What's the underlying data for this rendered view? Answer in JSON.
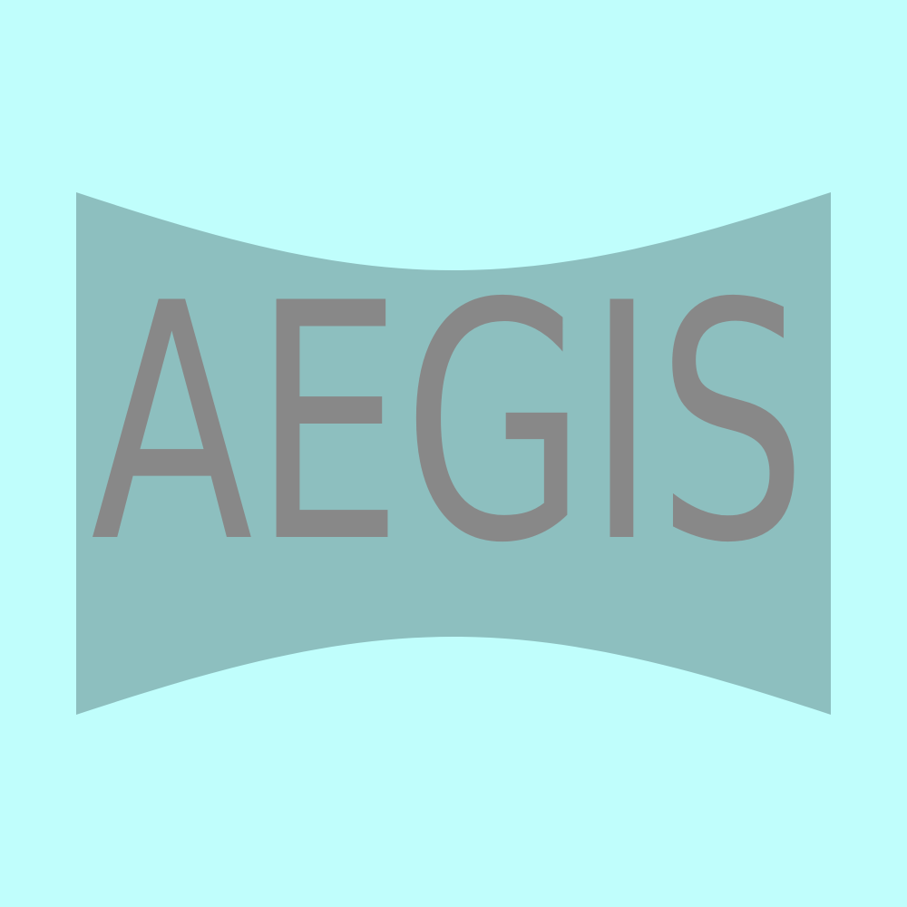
{
  "logo": {
    "text": "AEGIS"
  }
}
